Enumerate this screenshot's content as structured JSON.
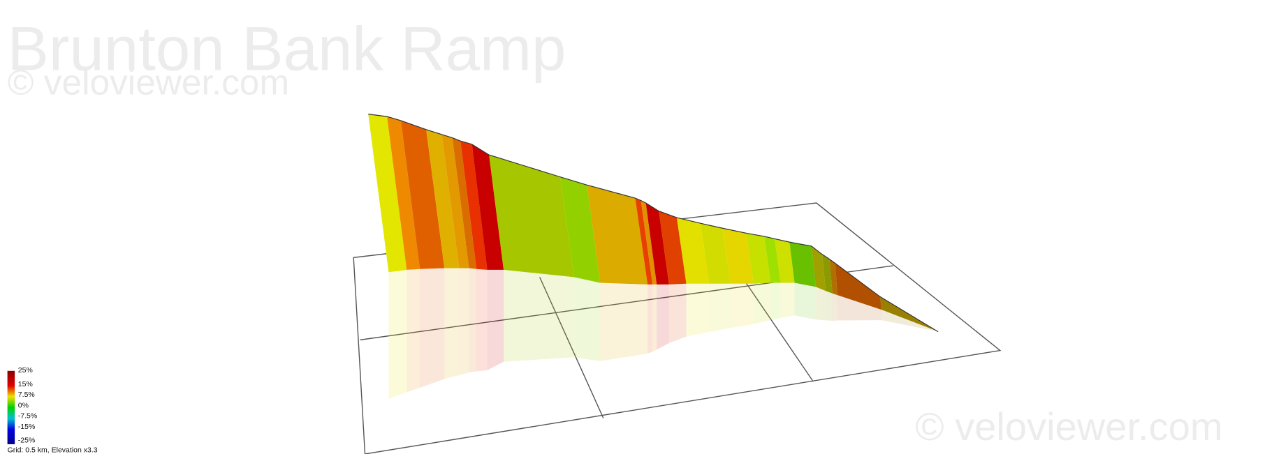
{
  "header": {
    "title": "Brunton Bank Ramp",
    "watermark": "© veloviewer.com"
  },
  "footer": {
    "watermark": "© veloviewer.com"
  },
  "legend": {
    "labels": [
      "25%",
      "15%",
      "7.5%",
      "0%",
      "-7.5%",
      "-15%",
      "-25%"
    ],
    "caption": "Grid: 0.5 km, Elevation x3.3"
  }
}
